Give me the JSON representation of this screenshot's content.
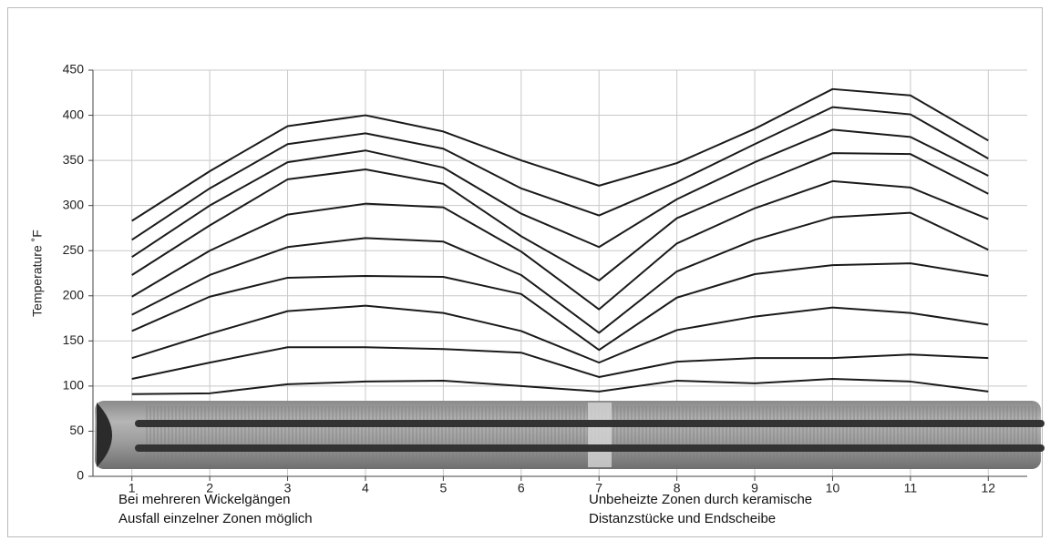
{
  "chart_data": {
    "type": "line",
    "y_label": "Temperature ˚F",
    "x": [
      1,
      2,
      3,
      4,
      5,
      6,
      7,
      8,
      9,
      10,
      11,
      12
    ],
    "xlim": [
      0.5,
      12.5
    ],
    "xticks": [
      1,
      2,
      3,
      4,
      5,
      6,
      7,
      8,
      9,
      10,
      11,
      12
    ],
    "ylim": [
      0,
      450
    ],
    "yticks": [
      0,
      50,
      100,
      150,
      200,
      250,
      300,
      350,
      400,
      450
    ],
    "grid": true,
    "series": [
      {
        "color": "#1a1a1a",
        "values": [
          91,
          92,
          102,
          105,
          106,
          100,
          94,
          106,
          103,
          108,
          105,
          94
        ]
      },
      {
        "color": "#1a1a1a",
        "values": [
          108,
          126,
          143,
          143,
          141,
          137,
          110,
          127,
          131,
          131,
          135,
          131
        ]
      },
      {
        "color": "#1a1a1a",
        "values": [
          131,
          158,
          183,
          189,
          181,
          161,
          126,
          162,
          177,
          187,
          181,
          168
        ]
      },
      {
        "color": "#1a1a1a",
        "values": [
          161,
          199,
          220,
          222,
          221,
          202,
          140,
          198,
          224,
          234,
          236,
          222
        ]
      },
      {
        "color": "#1a1a1a",
        "values": [
          179,
          223,
          254,
          264,
          260,
          223,
          159,
          227,
          262,
          287,
          292,
          251
        ]
      },
      {
        "color": "#1a1a1a",
        "values": [
          199,
          250,
          290,
          302,
          298,
          249,
          185,
          258,
          297,
          327,
          320,
          285
        ]
      },
      {
        "color": "#1a1a1a",
        "values": [
          223,
          278,
          329,
          340,
          324,
          266,
          217,
          286,
          323,
          358,
          357,
          313
        ]
      },
      {
        "color": "#1a1a1a",
        "values": [
          243,
          300,
          348,
          361,
          342,
          291,
          254,
          307,
          348,
          384,
          376,
          333
        ]
      },
      {
        "color": "#1a1a1a",
        "values": [
          262,
          319,
          368,
          380,
          363,
          319,
          289,
          326,
          368,
          409,
          401,
          352
        ]
      },
      {
        "color": "#1a1a1a",
        "values": [
          283,
          338,
          388,
          400,
          382,
          350,
          322,
          347,
          385,
          429,
          422,
          372
        ]
      }
    ],
    "annotations": [
      "Bei mehreren Wickelgängen",
      "Ausfall einzelner Zonen möglich",
      "Unbeheizte Zonen durch keramische",
      "Distanzstücke und Endscheibe"
    ]
  }
}
